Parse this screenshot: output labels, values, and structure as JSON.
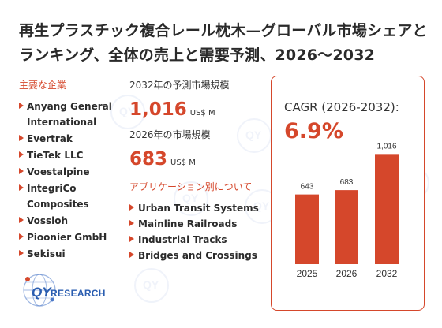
{
  "title": "再生プラスチック複合レール枕木—グローバル市場シェアとランキング、全体の売上と需要予測、2026〜2032",
  "players": {
    "label": "主要な企業",
    "items": [
      "Anyang General International",
      "Evertrak",
      "TieTek LLC",
      "Voestalpine",
      "IntegriCo Composites",
      "Vossloh",
      "Pioonier GmbH",
      "Sekisui"
    ]
  },
  "forecast": {
    "label": "2032年の予測市場規模",
    "value": "1,016",
    "unit": "US$ M"
  },
  "current": {
    "label": "2026年の市場規模",
    "value": "683",
    "unit": "US$ M"
  },
  "applications": {
    "label": "アプリケーション別について",
    "items": [
      "Urban Transit Systems",
      "Mainline Railroads",
      "Industrial Tracks",
      "Bridges and Crossings"
    ]
  },
  "cagr": {
    "label": "CAGR (2026-2032):",
    "value": "6.9%"
  },
  "chart_data": {
    "type": "bar",
    "categories": [
      "2025",
      "2026",
      "2032"
    ],
    "values": [
      643,
      683,
      1016
    ],
    "value_labels": [
      "643",
      "683",
      "1,016"
    ],
    "ylim": [
      0,
      1100
    ],
    "color": "#d5472b",
    "grid": false
  },
  "logo": {
    "text_qy": "QY",
    "text_research": "RESEARCH"
  },
  "colors": {
    "accent": "#d5472b",
    "logo_blue": "#2a5db0"
  }
}
